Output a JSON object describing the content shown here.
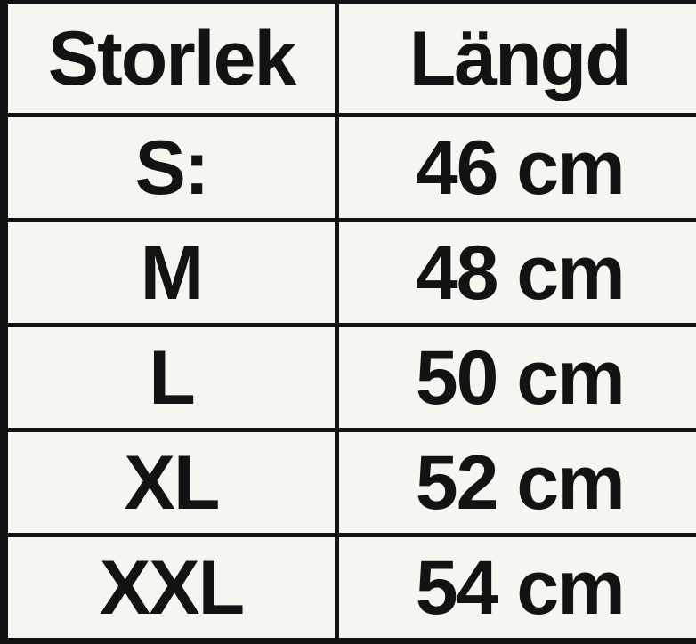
{
  "colors": {
    "background": "#f7f5f0",
    "grid": "#131313",
    "text": "#131313"
  },
  "table": {
    "headers": {
      "size": "Storlek",
      "length": "Längd"
    },
    "rows": [
      {
        "size": "S:",
        "length": "46 cm"
      },
      {
        "size": "M",
        "length": "48 cm"
      },
      {
        "size": "L",
        "length": "50 cm"
      },
      {
        "size": "XL",
        "length": "52 cm"
      },
      {
        "size": "XXL",
        "length": "54 cm"
      }
    ]
  },
  "chart_data": {
    "type": "table",
    "title": "",
    "columns": [
      "Storlek",
      "Längd"
    ],
    "rows": [
      [
        "S:",
        "46 cm"
      ],
      [
        "M",
        "48 cm"
      ],
      [
        "L",
        "50 cm"
      ],
      [
        "XL",
        "52 cm"
      ],
      [
        "XXL",
        "54 cm"
      ]
    ],
    "sizes": [
      "S",
      "M",
      "L",
      "XL",
      "XXL"
    ],
    "lengths_cm": [
      46,
      48,
      50,
      52,
      54
    ],
    "unit": "cm"
  }
}
